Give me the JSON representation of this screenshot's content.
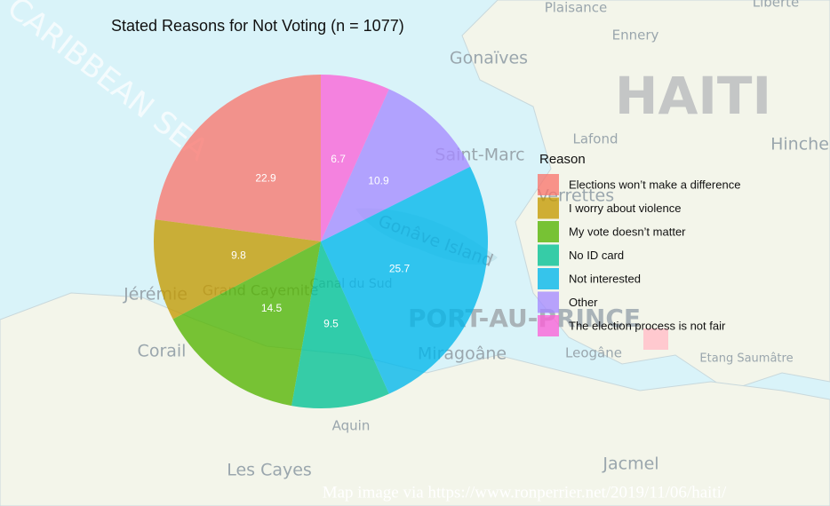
{
  "chart_data": {
    "type": "pie",
    "title": "Stated Reasons for Not Voting (n = 1077)",
    "legend_title": "Reason",
    "categories": [
      "Elections won’t make a difference",
      "I worry about violence",
      "My vote doesn’t matter",
      "No ID card",
      "Not interested",
      "Other",
      "The election process is not fair"
    ],
    "values": [
      22.9,
      9.8,
      14.5,
      9.5,
      25.7,
      10.9,
      6.7
    ],
    "colors": [
      "#F8766D",
      "#C49A00",
      "#53B400",
      "#00C094",
      "#00B6EB",
      "#A58AFF",
      "#FB61D7"
    ],
    "legend": "right"
  },
  "map_labels": [
    "HAITI",
    "CARIBBEAN SEA",
    "Plaisance",
    "Ennery",
    "Liberté",
    "Gonaïves",
    "Lafond",
    "Hinche",
    "Saint-Marc",
    "Verrettes",
    "Gonâve Island",
    "Canal du Sud",
    "Grand Cayemite",
    "Jérémie",
    "Corail",
    "PORT-AU-PRINCE",
    "Miragoâne",
    "Leogâne",
    "Aquin",
    "Les Cayes",
    "Jacmel",
    "Etang Saumâtre"
  ],
  "caption": "Map image via https://www.ronperrier.net/2019/11/06/haiti/"
}
